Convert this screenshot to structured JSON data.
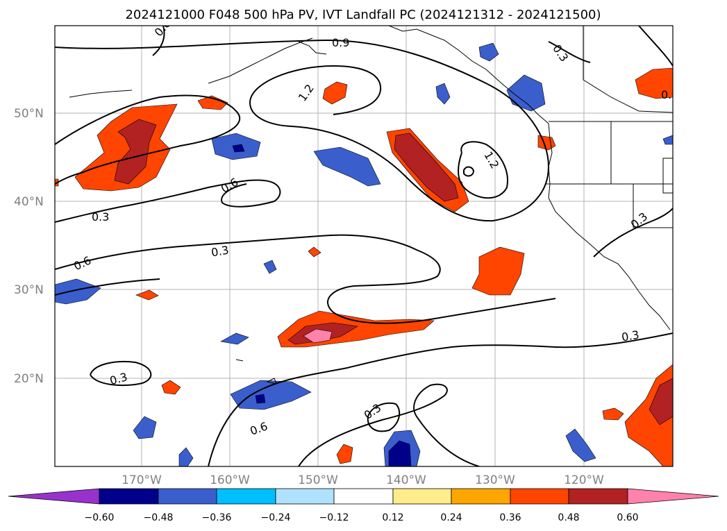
{
  "title": "2024121000 F048 500 hPa PV, IVT Landfall PC (2024121312 - 2024121500)",
  "map": {
    "lat_labels": [
      "50°N",
      "40°N",
      "30°N",
      "20°N"
    ],
    "lon_labels": [
      "170°W",
      "160°W",
      "150°W",
      "140°W",
      "130°W",
      "120°W"
    ],
    "contour_labels": [
      "0.9",
      "1.2",
      "1.2",
      "0.3",
      "0.6",
      "0.3",
      "0.6",
      "0.3",
      "0.3",
      "0.6",
      "0.3",
      "0.3",
      "0.3",
      "0.6",
      "0.6"
    ]
  },
  "colorbar": {
    "ticks": [
      "−0.60",
      "−0.48",
      "−0.36",
      "−0.24",
      "−0.12",
      "0.12",
      "0.24",
      "0.36",
      "0.48",
      "0.60"
    ],
    "colors": {
      "under": "#9932cc",
      "c1": "#00008b",
      "c2": "#3a5fcd",
      "c3": "#00bfff",
      "c4": "#b0e2ff",
      "c5": "#ffffff",
      "c6": "#ffec8b",
      "c7": "#ffa500",
      "c8": "#ff4500",
      "c9": "#b22222",
      "over": "#ff82ab"
    }
  }
}
